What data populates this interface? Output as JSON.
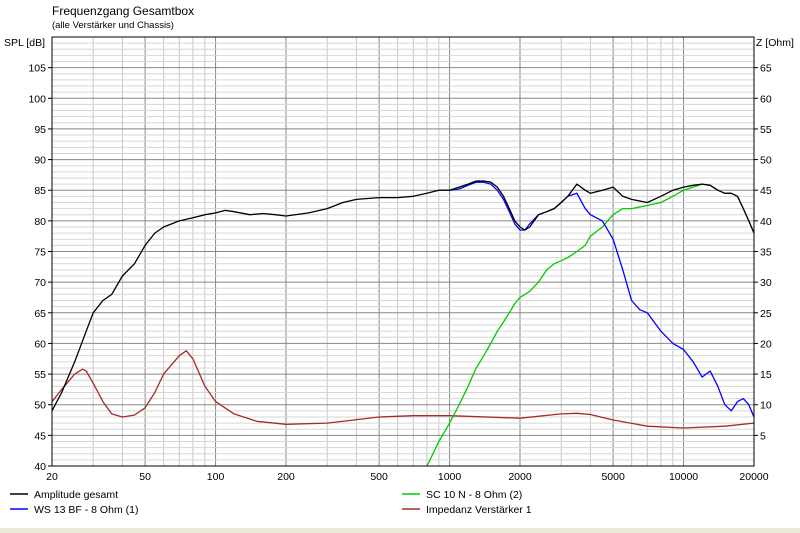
{
  "chart_data": {
    "type": "line",
    "title": "Frequenzgang Gesamtbox",
    "subtitle": "(alle Verstärker und Chassis)",
    "ylabel_left": "SPL [dB]",
    "ylabel_right": "Z [Ohm]",
    "x_scale": "log",
    "xlim": [
      20,
      20000
    ],
    "ylim_left": [
      40,
      110
    ],
    "ylim_right": [
      0,
      70
    ],
    "x_ticks": [
      20,
      50,
      100,
      200,
      500,
      1000,
      2000,
      5000,
      10000,
      20000
    ],
    "y_ticks_left": [
      40,
      45,
      50,
      55,
      60,
      65,
      70,
      75,
      80,
      85,
      90,
      95,
      100,
      105
    ],
    "y_ticks_right": [
      5,
      10,
      15,
      20,
      25,
      30,
      35,
      40,
      45,
      50,
      55,
      60,
      65
    ],
    "grid": true,
    "legend_position": "bottom",
    "series": [
      {
        "name": "Amplitude gesamt",
        "color": "#000000",
        "axis": "left",
        "x": [
          20,
          22,
          25,
          28,
          30,
          33,
          36,
          40,
          45,
          50,
          55,
          60,
          70,
          80,
          90,
          100,
          110,
          120,
          140,
          160,
          180,
          200,
          250,
          300,
          350,
          400,
          500,
          600,
          700,
          800,
          900,
          1000,
          1100,
          1200,
          1300,
          1400,
          1500,
          1600,
          1700,
          1800,
          1900,
          2000,
          2100,
          2200,
          2400,
          2600,
          2800,
          3000,
          3200,
          3500,
          3800,
          4000,
          4500,
          5000,
          5500,
          6000,
          7000,
          8000,
          9000,
          10000,
          11000,
          12000,
          13000,
          14000,
          15000,
          16000,
          17000,
          18000,
          19000,
          20000
        ],
        "y": [
          49,
          52,
          57,
          62,
          65,
          67,
          68,
          71,
          73,
          76,
          78,
          79,
          80,
          80.5,
          81,
          81.3,
          81.7,
          81.5,
          81,
          81.2,
          81,
          80.8,
          81.3,
          82,
          83,
          83.5,
          83.8,
          83.8,
          84,
          84.5,
          85,
          85,
          85.5,
          86,
          86.5,
          86.5,
          86.3,
          85.5,
          84,
          82,
          80,
          79,
          78.5,
          79,
          81,
          81.5,
          82,
          83,
          84,
          86,
          85,
          84.5,
          85,
          85.5,
          84,
          83.5,
          83,
          84,
          85,
          85.5,
          85.8,
          86,
          85.8,
          85,
          84.5,
          84.5,
          84,
          82,
          80,
          78
        ]
      },
      {
        "name": "WS 13 BF - 8 Ohm (1)",
        "color": "#0000ff",
        "axis": "left",
        "x": [
          1000,
          1100,
          1200,
          1300,
          1400,
          1500,
          1600,
          1700,
          1800,
          1900,
          2000,
          2100,
          2200,
          2400,
          2600,
          2800,
          3000,
          3200,
          3500,
          3800,
          4000,
          4500,
          5000,
          5500,
          6000,
          6500,
          7000,
          8000,
          9000,
          10000,
          11000,
          12000,
          13000,
          14000,
          15000,
          16000,
          17000,
          18000,
          19000,
          20000
        ],
        "y": [
          85,
          85.2,
          85.8,
          86.3,
          86.3,
          86,
          85,
          83.5,
          81.5,
          79.5,
          78.5,
          78.5,
          79.5,
          81,
          81.5,
          82,
          83,
          84,
          84.5,
          82,
          81,
          80,
          77,
          72,
          67,
          65.5,
          65,
          62,
          60,
          59,
          57,
          54.5,
          55.5,
          53,
          50,
          49,
          50.5,
          51,
          50,
          48
        ]
      },
      {
        "name": "SC 10 N - 8 Ohm (2)",
        "color": "#00cc00",
        "axis": "left",
        "x": [
          800,
          850,
          900,
          950,
          1000,
          1100,
          1200,
          1300,
          1400,
          1500,
          1600,
          1700,
          1800,
          1900,
          2000,
          2200,
          2400,
          2600,
          2800,
          3000,
          3200,
          3500,
          3800,
          4000,
          4500,
          5000,
          5500,
          6000,
          7000,
          8000,
          9000,
          10000,
          11000,
          12000,
          13000,
          14000,
          15000,
          16000,
          17000,
          18000,
          19000,
          20000
        ],
        "y": [
          40,
          42,
          44,
          45.5,
          47,
          50,
          53,
          56,
          58,
          60,
          62,
          63.5,
          65,
          66.5,
          67.5,
          68.5,
          70,
          72,
          73,
          73.5,
          74,
          75,
          76,
          77.5,
          79,
          81,
          82,
          82,
          82.5,
          83,
          84,
          85,
          85.5,
          86,
          85.8,
          85,
          84.5,
          84.5,
          84,
          82,
          80,
          78
        ]
      },
      {
        "name": "Impedanz Verstärker 1",
        "color": "#a52a2a",
        "axis": "right",
        "x": [
          20,
          22,
          25,
          27,
          28,
          30,
          33,
          36,
          40,
          45,
          50,
          55,
          60,
          70,
          75,
          80,
          90,
          100,
          120,
          150,
          200,
          300,
          500,
          700,
          1000,
          2000,
          3000,
          3500,
          4000,
          5000,
          7000,
          10000,
          15000,
          20000
        ],
        "y": [
          10.5,
          12.5,
          15,
          15.8,
          15.5,
          13.5,
          10.5,
          8.5,
          8,
          8.3,
          9.5,
          12,
          15,
          18,
          18.8,
          17.5,
          13,
          10.5,
          8.5,
          7.3,
          6.8,
          7,
          8,
          8.2,
          8.2,
          7.8,
          8.5,
          8.6,
          8.4,
          7.5,
          6.5,
          6.2,
          6.5,
          7
        ]
      }
    ]
  }
}
